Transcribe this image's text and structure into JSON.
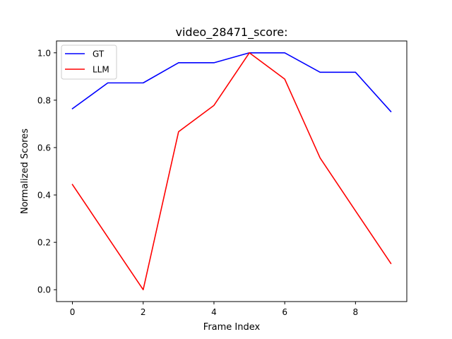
{
  "chart_data": {
    "type": "line",
    "title": "video_28471_score:",
    "xlabel": "Frame Index",
    "ylabel": "Normalized Scores",
    "x": [
      0,
      1,
      2,
      3,
      4,
      5,
      6,
      7,
      8,
      9
    ],
    "xlim": [
      -0.45,
      9.45
    ],
    "ylim": [
      -0.05,
      1.05
    ],
    "xticks": [
      0,
      2,
      4,
      6,
      8
    ],
    "yticks": [
      0.0,
      0.2,
      0.4,
      0.6,
      0.8,
      1.0
    ],
    "xtick_labels": [
      "0",
      "2",
      "4",
      "6",
      "8"
    ],
    "ytick_labels": [
      "0.0",
      "0.2",
      "0.4",
      "0.6",
      "0.8",
      "1.0"
    ],
    "grid": false,
    "legend_position": "upper-left",
    "series": [
      {
        "name": "GT",
        "color": "#0000ff",
        "values": [
          0.764,
          0.873,
          0.873,
          0.958,
          0.958,
          1.0,
          1.0,
          0.918,
          0.918,
          0.752
        ]
      },
      {
        "name": "LLM",
        "color": "#ff0000",
        "values": [
          0.444,
          0.222,
          0.0,
          0.667,
          0.778,
          1.0,
          0.889,
          0.556,
          0.333,
          0.111
        ]
      }
    ]
  }
}
